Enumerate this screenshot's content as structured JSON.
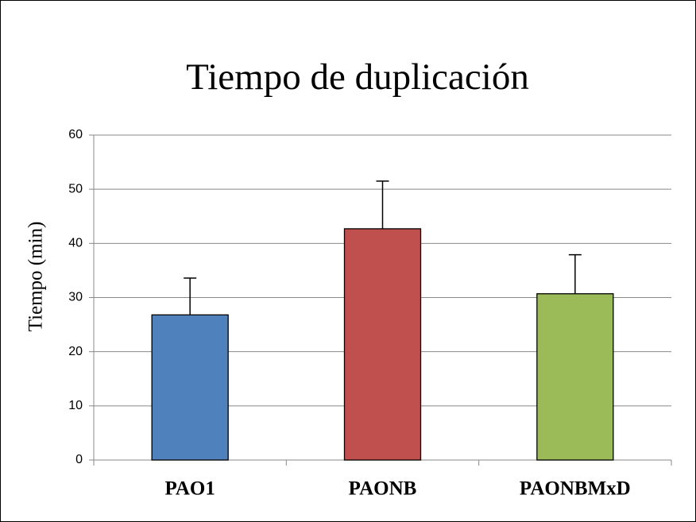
{
  "chart_data": {
    "type": "bar",
    "title": "Tiempo de duplicación",
    "ylabel": "Tiempo (min)",
    "categories": [
      "PAO1",
      "PAONB",
      "PAONBMxD"
    ],
    "values": [
      26.8,
      42.7,
      30.7
    ],
    "errors": [
      6.8,
      8.8,
      7.2
    ],
    "colors": [
      "#4f81bd",
      "#c0504d",
      "#9bbb59"
    ],
    "ylim": [
      0,
      60
    ],
    "yticks": [
      0,
      10,
      20,
      30,
      40,
      50,
      60
    ],
    "grid": true
  }
}
